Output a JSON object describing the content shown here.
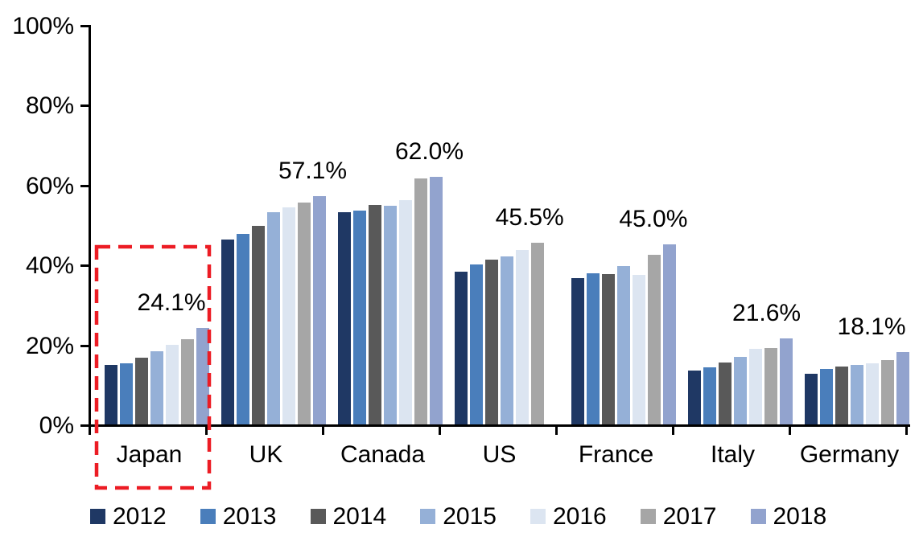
{
  "chart_data": {
    "type": "bar",
    "title": "",
    "xlabel": "",
    "ylabel": "",
    "ylim": [
      0,
      100
    ],
    "yticks": [
      "0%",
      "20%",
      "40%",
      "60%",
      "80%",
      "100%"
    ],
    "grid": false,
    "legend_position": "bottom",
    "categories": [
      "Japan",
      "UK",
      "Canada",
      "US",
      "France",
      "Italy",
      "Germany"
    ],
    "series": [
      {
        "name": "2012",
        "color": "#1F3864",
        "values": [
          14.8,
          46.2,
          53.1,
          38.3,
          36.6,
          13.4,
          12.6
        ]
      },
      {
        "name": "2013",
        "color": "#4A7EBB",
        "values": [
          15.2,
          47.7,
          53.5,
          40.1,
          37.8,
          14.3,
          13.9
        ]
      },
      {
        "name": "2014",
        "color": "#595959",
        "values": [
          16.6,
          49.7,
          54.9,
          41.2,
          37.7,
          15.4,
          14.4
        ]
      },
      {
        "name": "2015",
        "color": "#95B0D7",
        "values": [
          18.3,
          53.2,
          54.7,
          42.1,
          39.6,
          17.0,
          14.8
        ]
      },
      {
        "name": "2016",
        "color": "#DCE5F1",
        "values": [
          20.0,
          54.4,
          56.2,
          43.6,
          37.5,
          18.9,
          15.3
        ]
      },
      {
        "name": "2017",
        "color": "#A6A6A6",
        "values": [
          21.3,
          55.6,
          61.5,
          45.5,
          42.4,
          19.1,
          16.0
        ]
      },
      {
        "name": "2018",
        "color": "#92A3CE",
        "values": [
          24.1,
          57.1,
          62.0,
          null,
          45.0,
          21.6,
          18.1
        ]
      }
    ],
    "data_labels": [
      "24.1%",
      "57.1%",
      "62.0%",
      "45.5%",
      "45.0%",
      "21.6%",
      "18.1%"
    ],
    "highlight": {
      "category": "Japan",
      "style": "dashed-rectangle",
      "color": "#EC1C24"
    }
  }
}
